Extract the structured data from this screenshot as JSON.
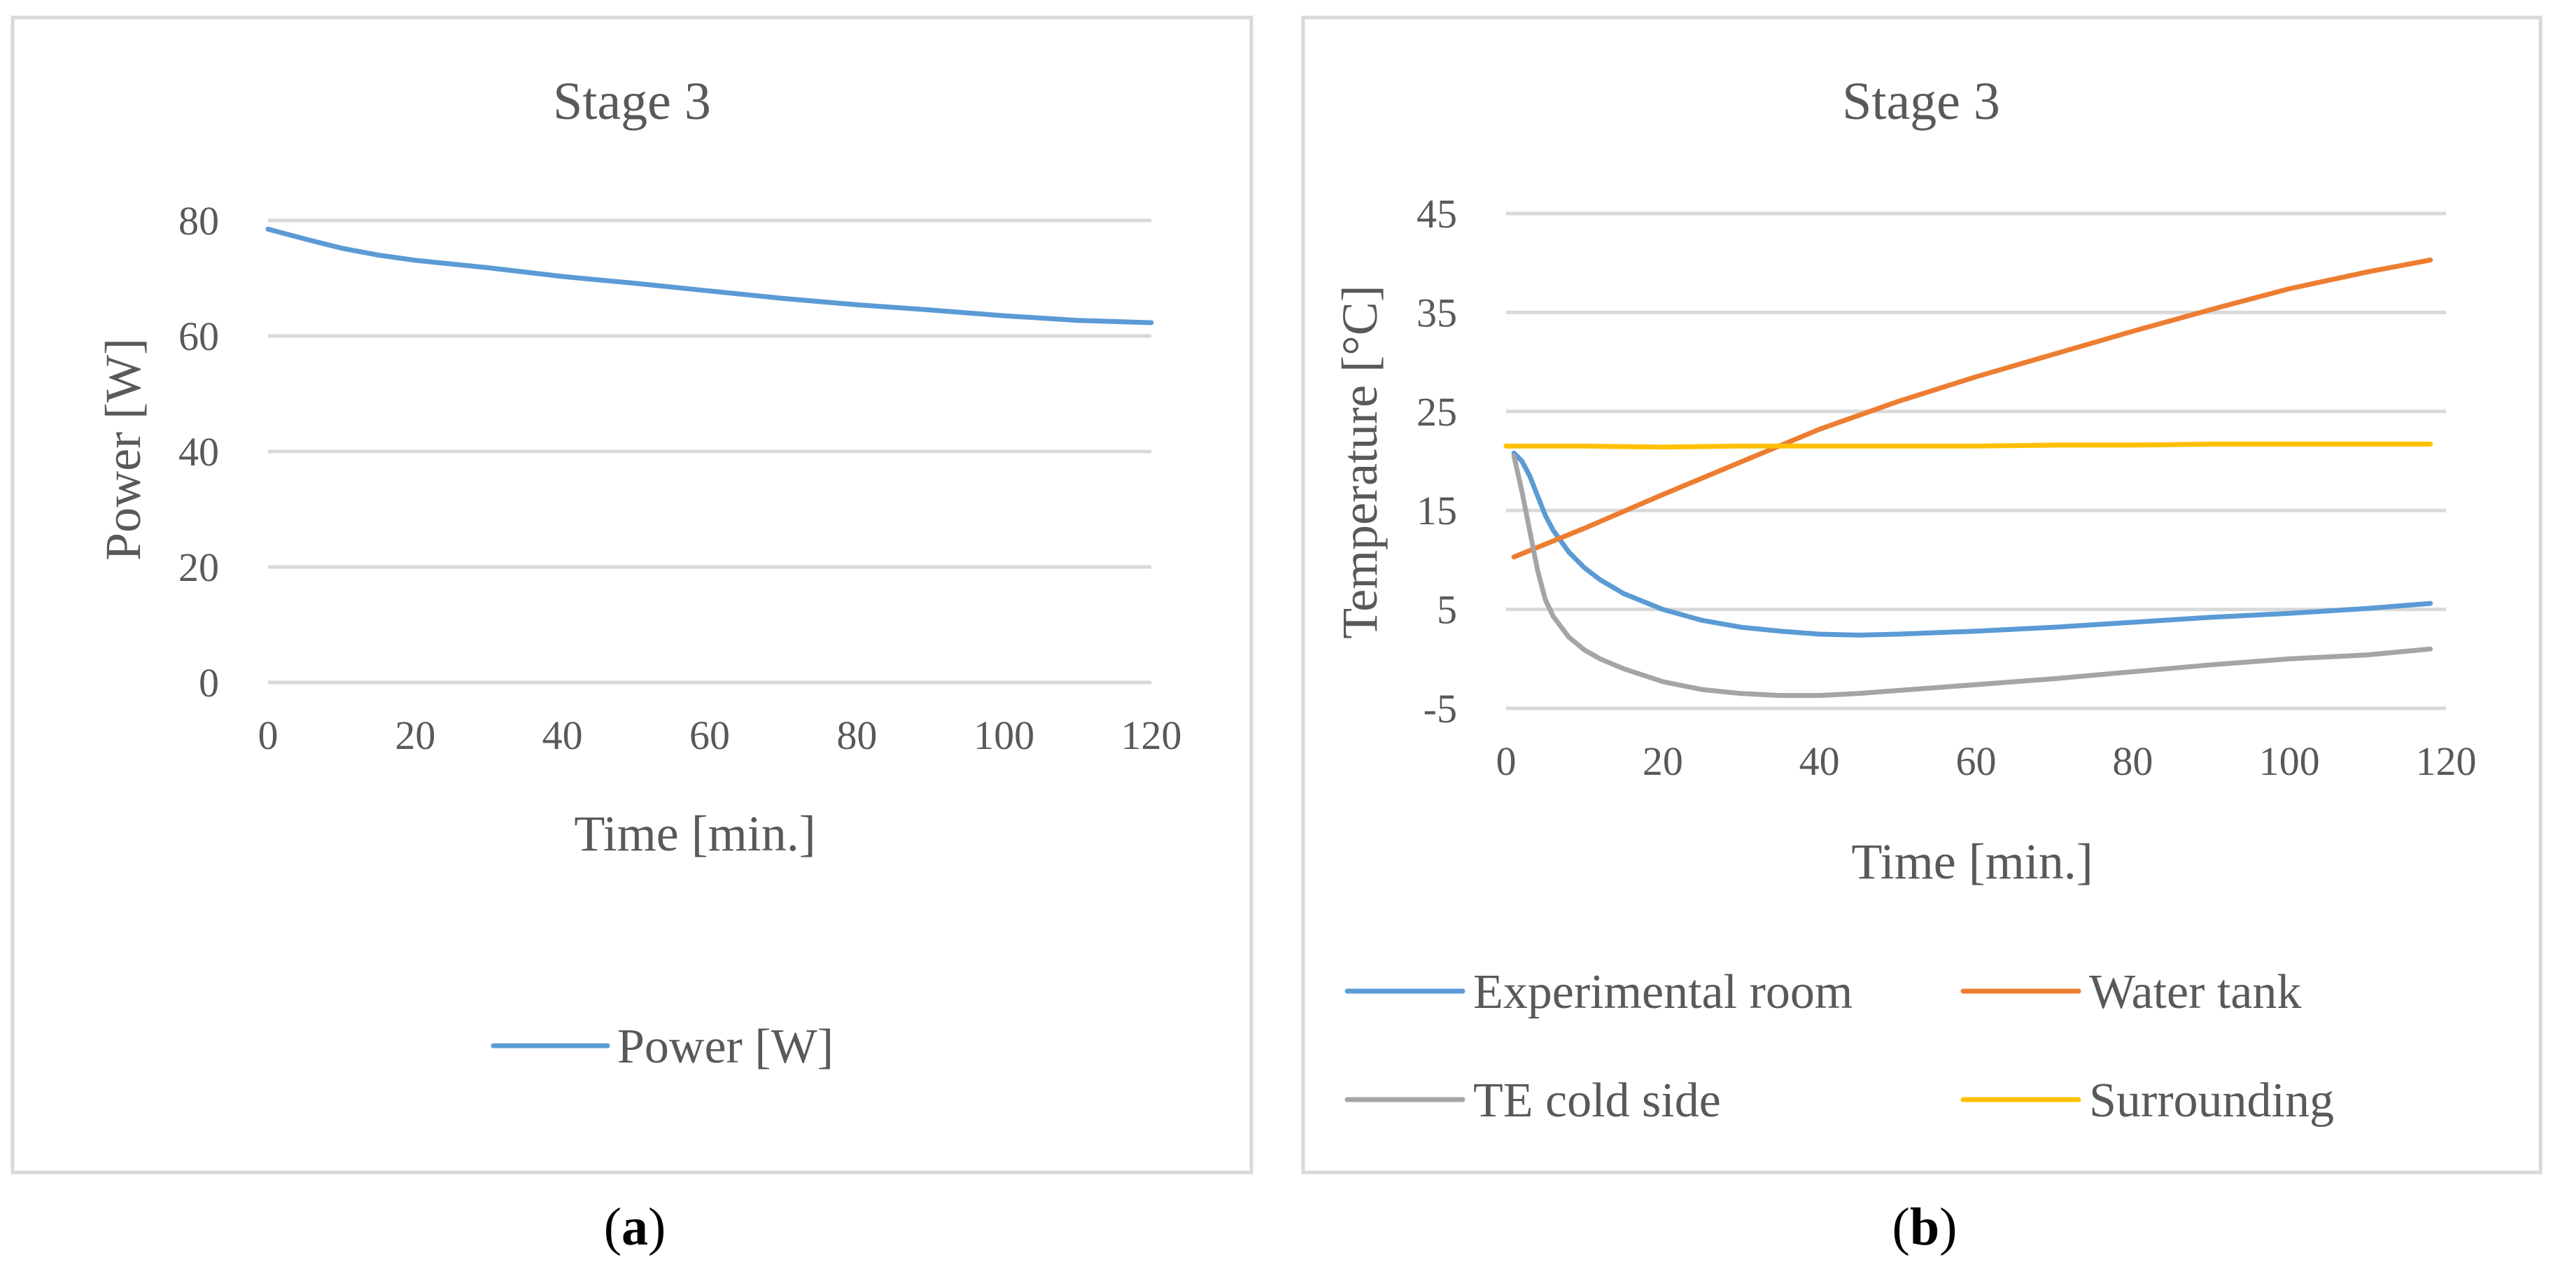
{
  "chart_data": [
    {
      "id": "a",
      "type": "line",
      "title": "Stage 3",
      "xlabel": "Time [min.]",
      "ylabel": "Power [W]",
      "xlim": [
        0,
        120
      ],
      "ylim": [
        0,
        80
      ],
      "xticks": [
        0,
        20,
        40,
        60,
        80,
        100,
        120
      ],
      "yticks": [
        0,
        20,
        40,
        60,
        80
      ],
      "legend_position": "bottom",
      "caption_letter": "a",
      "series": [
        {
          "name": "Power [W]",
          "color": "#5b9bd5",
          "x": [
            0,
            5,
            10,
            15,
            20,
            30,
            40,
            50,
            60,
            70,
            80,
            90,
            100,
            110,
            120
          ],
          "y": [
            78.5,
            76.8,
            75.2,
            74.0,
            73.1,
            71.8,
            70.3,
            69.1,
            67.8,
            66.5,
            65.4,
            64.5,
            63.5,
            62.7,
            62.3
          ]
        }
      ]
    },
    {
      "id": "b",
      "type": "line",
      "title": "Stage 3",
      "xlabel": "Time [min.]",
      "ylabel": "Temperature [°C]",
      "xlim": [
        0,
        120
      ],
      "ylim": [
        -5,
        45
      ],
      "xticks": [
        0,
        20,
        40,
        60,
        80,
        100,
        120
      ],
      "yticks": [
        -5,
        5,
        15,
        25,
        35,
        45
      ],
      "legend_position": "bottom",
      "caption_letter": "b",
      "series": [
        {
          "name": "Experimental room",
          "color": "#5b9bd5",
          "x": [
            1,
            2,
            3,
            4,
            5,
            6,
            8,
            10,
            12,
            15,
            20,
            25,
            30,
            35,
            40,
            45,
            50,
            60,
            70,
            80,
            90,
            100,
            110,
            118
          ],
          "y": [
            20.8,
            20.0,
            18.5,
            16.5,
            14.5,
            13.0,
            10.8,
            9.2,
            8.0,
            6.6,
            5.0,
            3.9,
            3.2,
            2.8,
            2.5,
            2.4,
            2.5,
            2.8,
            3.2,
            3.7,
            4.2,
            4.6,
            5.1,
            5.6
          ]
        },
        {
          "name": "Water tank",
          "color": "#ed7d31",
          "x": [
            1,
            10,
            20,
            30,
            40,
            50,
            60,
            70,
            80,
            90,
            100,
            110,
            118
          ],
          "y": [
            10.3,
            13.2,
            16.6,
            19.9,
            23.2,
            26.0,
            28.5,
            30.8,
            33.1,
            35.3,
            37.4,
            39.1,
            40.3
          ]
        },
        {
          "name": "TE cold side",
          "color": "#a5a5a5",
          "x": [
            1,
            2,
            3,
            4,
            5,
            6,
            8,
            10,
            12,
            15,
            20,
            25,
            30,
            35,
            40,
            45,
            50,
            60,
            70,
            80,
            90,
            100,
            110,
            118
          ],
          "y": [
            20.5,
            17.0,
            13.0,
            9.0,
            6.0,
            4.3,
            2.2,
            0.9,
            0.0,
            -1.0,
            -2.3,
            -3.1,
            -3.5,
            -3.7,
            -3.7,
            -3.5,
            -3.2,
            -2.6,
            -2.0,
            -1.3,
            -0.6,
            0.0,
            0.4,
            1.0
          ]
        },
        {
          "name": "Surrounding",
          "color": "#ffc000",
          "x": [
            0,
            10,
            20,
            30,
            40,
            50,
            60,
            70,
            80,
            90,
            100,
            110,
            118
          ],
          "y": [
            21.5,
            21.5,
            21.4,
            21.5,
            21.5,
            21.5,
            21.5,
            21.6,
            21.6,
            21.7,
            21.7,
            21.7,
            21.7
          ]
        }
      ]
    }
  ]
}
